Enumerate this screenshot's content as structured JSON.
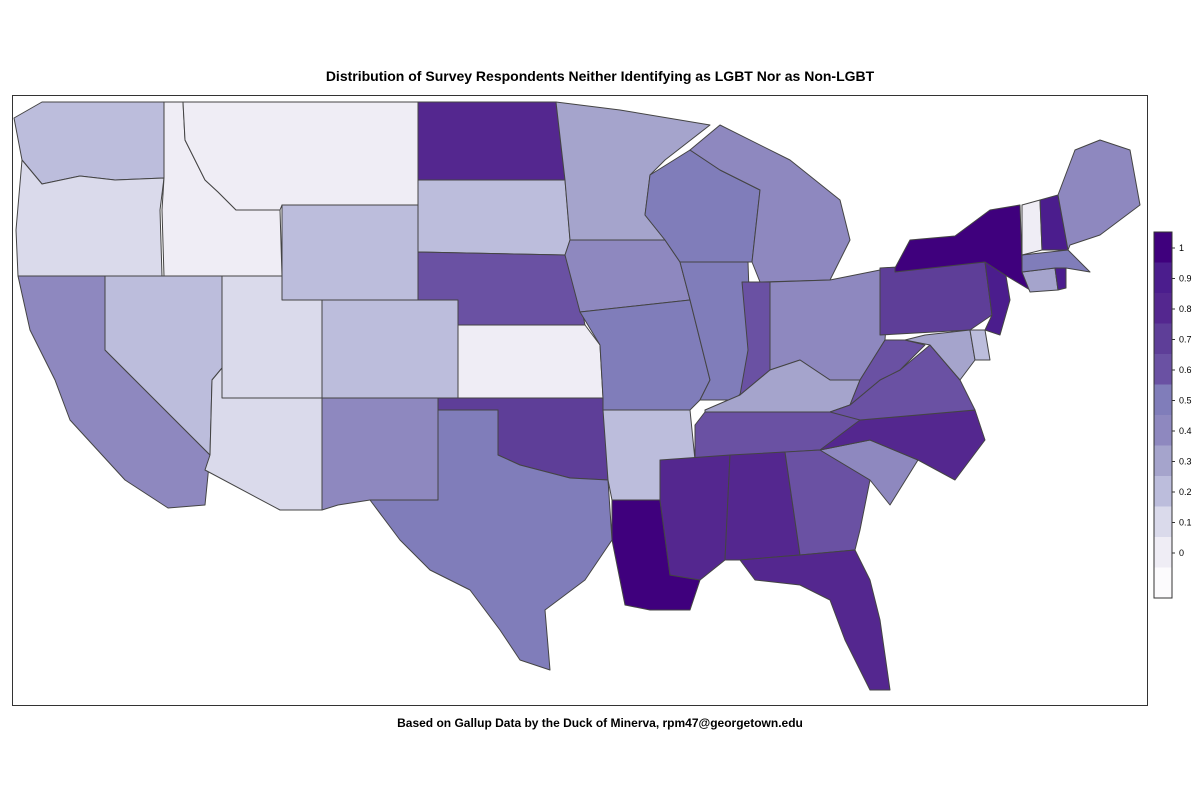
{
  "title": "Distribution of Survey Respondents Neither Identifying as LGBT Nor as Non-LGBT",
  "caption": "Based on Gallup Data by the Duck of Minerva, rpm47@georgetown.edu",
  "legend": {
    "labels": [
      "1",
      "0.9",
      "0.8",
      "0.7",
      "0.6",
      "0.5",
      "0.4",
      "0.3",
      "0.2",
      "0.1",
      "0"
    ],
    "colors": [
      "#3f007d",
      "#4b1d8d",
      "#54278f",
      "#5e3e98",
      "#6a51a3",
      "#807dba",
      "#8e88bf",
      "#a5a4cc",
      "#bcbddc",
      "#dadaeb",
      "#efedf5",
      "#fcfbfd"
    ]
  },
  "chart_data": {
    "type": "choropleth",
    "scale_range": [
      0,
      1
    ],
    "states": [
      {
        "name": "WA",
        "value": 0.2
      },
      {
        "name": "OR",
        "value": 0.1
      },
      {
        "name": "CA",
        "value": 0.4
      },
      {
        "name": "NV",
        "value": 0.2
      },
      {
        "name": "ID",
        "value": 0.0
      },
      {
        "name": "MT",
        "value": 0.0
      },
      {
        "name": "WY",
        "value": 0.2
      },
      {
        "name": "UT",
        "value": 0.1
      },
      {
        "name": "AZ",
        "value": 0.1
      },
      {
        "name": "CO",
        "value": 0.2
      },
      {
        "name": "NM",
        "value": 0.4
      },
      {
        "name": "ND",
        "value": 0.8
      },
      {
        "name": "SD",
        "value": 0.2
      },
      {
        "name": "NE",
        "value": 0.6
      },
      {
        "name": "KS",
        "value": 0.0
      },
      {
        "name": "OK",
        "value": 0.7
      },
      {
        "name": "TX",
        "value": 0.5
      },
      {
        "name": "MN",
        "value": 0.3
      },
      {
        "name": "IA",
        "value": 0.4
      },
      {
        "name": "MO",
        "value": 0.5
      },
      {
        "name": "AR",
        "value": 0.2
      },
      {
        "name": "LA",
        "value": 1.0
      },
      {
        "name": "WI",
        "value": 0.5
      },
      {
        "name": "IL",
        "value": 0.5
      },
      {
        "name": "MI",
        "value": 0.4
      },
      {
        "name": "IN",
        "value": 0.6
      },
      {
        "name": "OH",
        "value": 0.4
      },
      {
        "name": "KY",
        "value": 0.3
      },
      {
        "name": "TN",
        "value": 0.6
      },
      {
        "name": "MS",
        "value": 0.8
      },
      {
        "name": "AL",
        "value": 0.8
      },
      {
        "name": "GA",
        "value": 0.6
      },
      {
        "name": "FL",
        "value": 0.8
      },
      {
        "name": "SC",
        "value": 0.4
      },
      {
        "name": "NC",
        "value": 0.8
      },
      {
        "name": "VA",
        "value": 0.6
      },
      {
        "name": "WV",
        "value": 0.6
      },
      {
        "name": "PA",
        "value": 0.7
      },
      {
        "name": "NY",
        "value": 1.0
      },
      {
        "name": "NJ",
        "value": 0.9
      },
      {
        "name": "MD",
        "value": 0.3
      },
      {
        "name": "DE",
        "value": 0.2
      },
      {
        "name": "CT",
        "value": 0.3
      },
      {
        "name": "RI",
        "value": 0.9
      },
      {
        "name": "MA",
        "value": 0.5
      },
      {
        "name": "VT",
        "value": 0.0
      },
      {
        "name": "NH",
        "value": 0.9
      },
      {
        "name": "ME",
        "value": 0.4
      }
    ]
  }
}
